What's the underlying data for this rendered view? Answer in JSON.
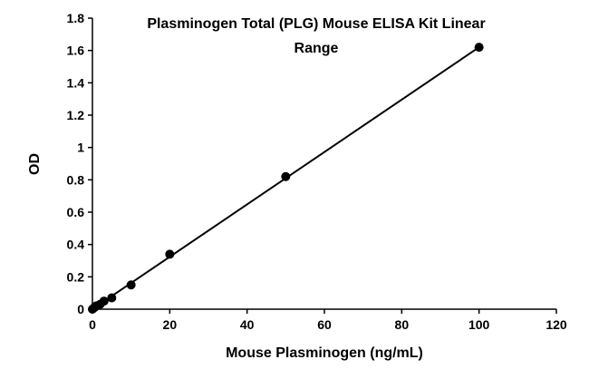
{
  "chart_data": {
    "type": "scatter",
    "title_lines": [
      "Plasminogen Total (PLG) Mouse ELISA Kit Linear",
      "Range"
    ],
    "xlabel": "Mouse Plasminogen (ng/mL)",
    "ylabel": "OD",
    "xlim": [
      0,
      120
    ],
    "ylim": [
      0,
      1.8
    ],
    "x_ticks": [
      "0",
      "20",
      "40",
      "60",
      "80",
      "100",
      "120"
    ],
    "y_ticks": [
      "0",
      "0.2",
      "0.4",
      "0.6",
      "0.8",
      "1",
      "1.2",
      "1.4",
      "1.6",
      "1.8"
    ],
    "grid": false,
    "legend": "none",
    "series": [
      {
        "x": [
          0,
          0.5,
          1,
          2,
          3,
          5,
          10,
          20,
          50,
          100
        ],
        "y": [
          0,
          0.01,
          0.02,
          0.03,
          0.05,
          0.07,
          0.15,
          0.34,
          0.82,
          1.62
        ],
        "trendline": "linear",
        "color": "#000000"
      }
    ]
  }
}
